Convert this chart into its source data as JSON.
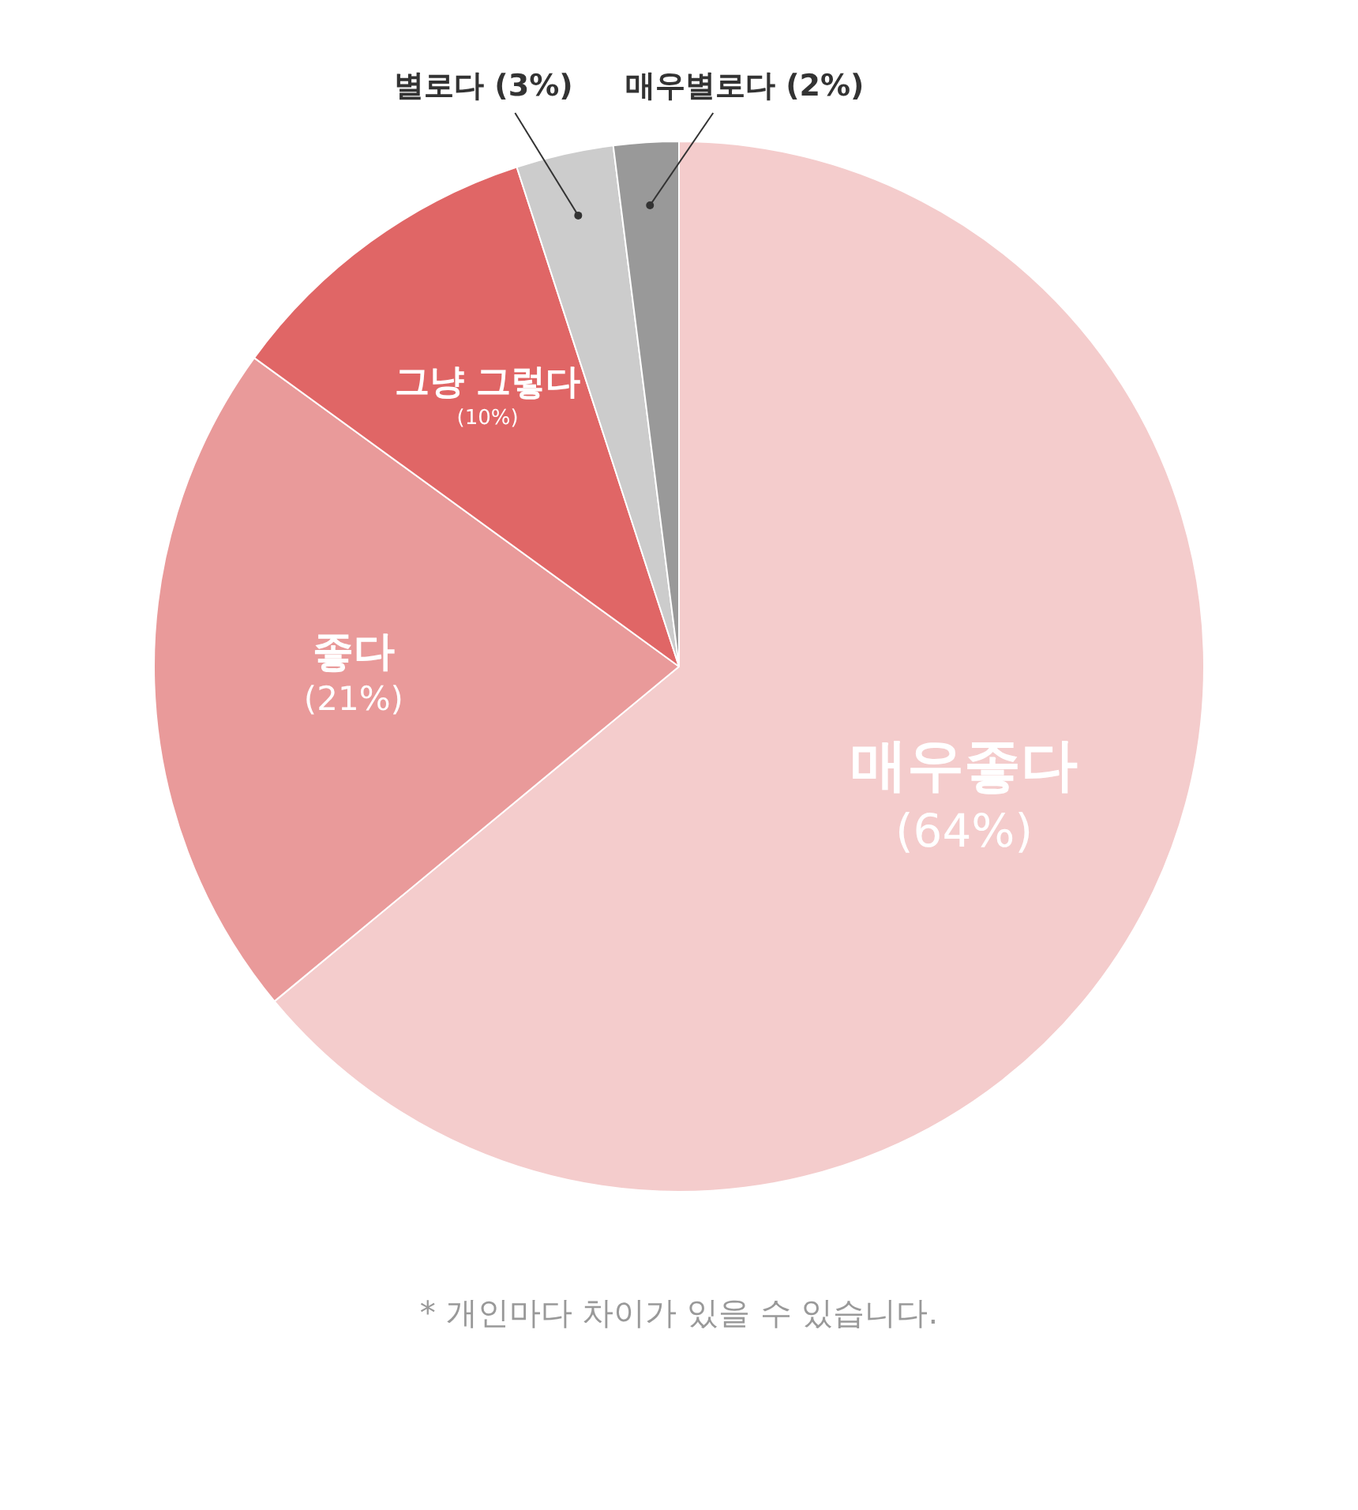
{
  "chart_data": {
    "type": "pie",
    "categories": [
      "매우좋다",
      "좋다",
      "그냥 그렇다",
      "별로다",
      "매우별로다"
    ],
    "values": [
      64,
      21,
      10,
      3,
      2
    ],
    "value_labels": [
      "(64%)",
      "(21%)",
      "(10%)",
      "(3%)",
      "(2%)"
    ],
    "colors": [
      "#f4cccc",
      "#e99a9a",
      "#e06666",
      "#cccccc",
      "#999999"
    ],
    "legend": false,
    "annotations": [
      "* 개인마다 차이가 있을 수 있습니다."
    ]
  }
}
